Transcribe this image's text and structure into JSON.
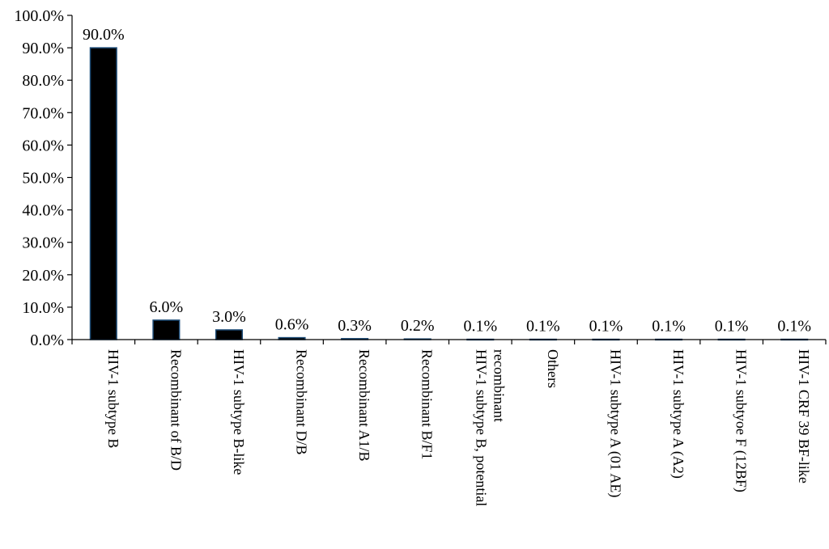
{
  "chart_data": {
    "type": "bar",
    "title": "",
    "xlabel": "",
    "ylabel": "",
    "ylim": [
      0,
      100
    ],
    "ytick_step": 10,
    "ytick_format": "percent_1dp",
    "grid": false,
    "legend": "none",
    "bar_color": "#000000",
    "bar_edge_color": "#1f4e79",
    "categories": [
      [
        "HIV-1 subtype B"
      ],
      [
        "Recombinant of B/D"
      ],
      [
        "HIV-1 subtype B-like"
      ],
      [
        "Recombinant D/B"
      ],
      [
        "Recombinant A1/B"
      ],
      [
        "Recombinant B/F1"
      ],
      [
        "HIV-1 subtype B, potential",
        "recombinant"
      ],
      [
        "Others"
      ],
      [
        "HIV-1 subtype A (01 AE)"
      ],
      [
        "HIV-1 subtype A (A2)"
      ],
      [
        "HIV-1 subtyoe F (12BF)"
      ],
      [
        "HIV-1 CRF 39 BF-like"
      ]
    ],
    "values": [
      90.0,
      6.0,
      3.0,
      0.6,
      0.3,
      0.2,
      0.1,
      0.1,
      0.1,
      0.1,
      0.1,
      0.1
    ],
    "data_labels": [
      "90.0%",
      "6.0%",
      "3.0%",
      "0.6%",
      "0.3%",
      "0.2%",
      "0.1%",
      "0.1%",
      "0.1%",
      "0.1%",
      "0.1%",
      "0.1%"
    ]
  }
}
